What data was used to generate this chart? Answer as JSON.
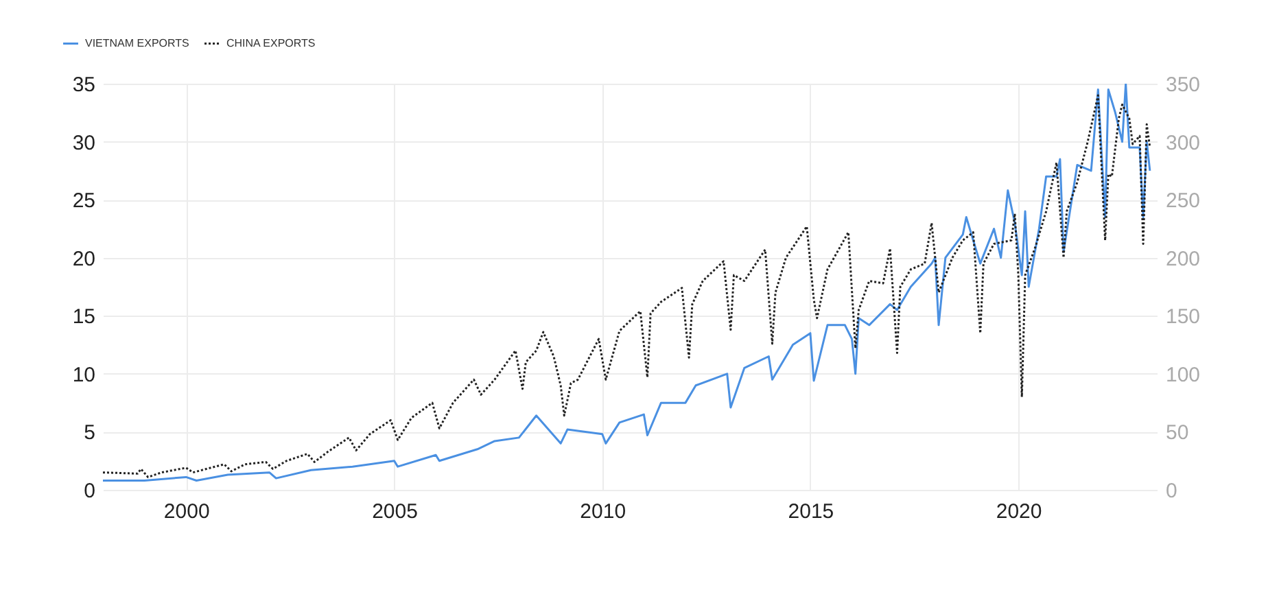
{
  "chart_data": {
    "type": "line",
    "xlim": [
      "1998-01",
      "2023-05"
    ],
    "xticks": [
      "2000",
      "2005",
      "2010",
      "2015",
      "2020"
    ],
    "ylim": [
      0,
      35
    ],
    "yticks": [
      0,
      5,
      10,
      15,
      20,
      25,
      30,
      35
    ],
    "y2lim": [
      0,
      350
    ],
    "y2ticks": [
      0,
      50,
      100,
      150,
      200,
      250,
      300,
      350
    ],
    "grid": true,
    "legend": "top left",
    "series": [
      {
        "name": "VIETNAM EXPORTS",
        "color": "#4a90e2",
        "line_style": "solid",
        "x": [
          "1998-01",
          "1999-01",
          "2000-01",
          "2000-04",
          "2001-01",
          "2002-01",
          "2002-03",
          "2003-01",
          "2004-01",
          "2005-01",
          "2005-02",
          "2006-01",
          "2006-02",
          "2007-01",
          "2007-06",
          "2008-01",
          "2008-06",
          "2009-01",
          "2009-03",
          "2010-01",
          "2010-02",
          "2010-06",
          "2011-01",
          "2011-02",
          "2011-06",
          "2012-01",
          "2012-04",
          "2013-01",
          "2013-02",
          "2013-06",
          "2014-01",
          "2014-02",
          "2014-08",
          "2015-01",
          "2015-02",
          "2015-06",
          "2015-11",
          "2016-01",
          "2016-02",
          "2016-03",
          "2016-06",
          "2016-12",
          "2017-02",
          "2017-06",
          "2017-12",
          "2018-01",
          "2018-02",
          "2018-04",
          "2018-09",
          "2018-10",
          "2019-01",
          "2019-02",
          "2019-06",
          "2019-08",
          "2019-10",
          "2019-12",
          "2020-02",
          "2020-03",
          "2020-04",
          "2020-07",
          "2020-09",
          "2020-12",
          "2021-01",
          "2021-02",
          "2021-06",
          "2021-10",
          "2021-12",
          "2022-02",
          "2022-03",
          "2022-05",
          "2022-07",
          "2022-08",
          "2022-09",
          "2022-12",
          "2023-01",
          "2023-02",
          "2023-03"
        ],
        "values": [
          0.8,
          0.8,
          1.1,
          0.8,
          1.3,
          1.5,
          1.0,
          1.7,
          2.0,
          2.5,
          2.0,
          3.0,
          2.5,
          3.5,
          4.2,
          4.5,
          6.4,
          4.0,
          5.2,
          4.8,
          4.0,
          5.8,
          6.5,
          4.7,
          7.5,
          7.5,
          9.0,
          10.0,
          7.1,
          10.5,
          11.5,
          9.5,
          12.5,
          13.5,
          9.4,
          14.2,
          14.2,
          13.0,
          10.0,
          14.8,
          14.2,
          16.0,
          15.5,
          17.5,
          19.5,
          20.0,
          14.2,
          20.0,
          22.0,
          23.5,
          20.5,
          19.5,
          22.5,
          20.0,
          25.8,
          23.0,
          18.5,
          24.0,
          17.5,
          22.5,
          27.0,
          27.0,
          28.5,
          20.5,
          28.0,
          27.5,
          34.5,
          23.5,
          34.5,
          32.5,
          30.0,
          35.0,
          29.5,
          29.5,
          23.5,
          30.0,
          27.5
        ]
      },
      {
        "name": "CHINA EXPORTS",
        "color": "#222222",
        "line_style": "dotted",
        "axis": "y2",
        "x": [
          "1998-01",
          "1998-11",
          "1998-12",
          "1999-02",
          "1999-06",
          "2000-01",
          "2000-03",
          "2000-12",
          "2001-02",
          "2001-06",
          "2001-12",
          "2002-02",
          "2002-06",
          "2002-12",
          "2003-02",
          "2003-06",
          "2003-12",
          "2004-02",
          "2004-06",
          "2004-12",
          "2005-02",
          "2005-06",
          "2005-12",
          "2006-02",
          "2006-06",
          "2006-12",
          "2007-02",
          "2007-06",
          "2007-12",
          "2008-02",
          "2008-03",
          "2008-06",
          "2008-08",
          "2008-11",
          "2009-01",
          "2009-02",
          "2009-04",
          "2009-06",
          "2009-12",
          "2010-02",
          "2010-06",
          "2010-12",
          "2011-02",
          "2011-03",
          "2011-06",
          "2011-12",
          "2012-02",
          "2012-03",
          "2012-06",
          "2012-12",
          "2013-02",
          "2013-03",
          "2013-06",
          "2013-12",
          "2014-02",
          "2014-03",
          "2014-06",
          "2014-12",
          "2015-02",
          "2015-03",
          "2015-06",
          "2015-12",
          "2016-02",
          "2016-03",
          "2016-06",
          "2016-10",
          "2016-12",
          "2017-02",
          "2017-03",
          "2017-06",
          "2017-10",
          "2017-12",
          "2018-02",
          "2018-06",
          "2018-09",
          "2018-12",
          "2019-02",
          "2019-03",
          "2019-06",
          "2019-11",
          "2019-12",
          "2020-01",
          "2020-02",
          "2020-03",
          "2020-06",
          "2020-09",
          "2020-12",
          "2021-02",
          "2021-03",
          "2021-06",
          "2021-09",
          "2021-12",
          "2022-02",
          "2022-03",
          "2022-04",
          "2022-06",
          "2022-07",
          "2022-09",
          "2022-10",
          "2022-12",
          "2023-01",
          "2023-02",
          "2023-03"
        ],
        "values": [
          15,
          14,
          18,
          11,
          15,
          19,
          15,
          22,
          16,
          22,
          24,
          18,
          25,
          31,
          24,
          33,
          45,
          34,
          48,
          60,
          43,
          62,
          75,
          53,
          75,
          95,
          82,
          95,
          120,
          87,
          110,
          120,
          136,
          115,
          90,
          64,
          92,
          95,
          130,
          95,
          137,
          154,
          97,
          152,
          162,
          174,
          114,
          160,
          180,
          197,
          138,
          185,
          180,
          207,
          126,
          170,
          200,
          227,
          164,
          148,
          190,
          222,
          122,
          155,
          180,
          178,
          208,
          118,
          175,
          190,
          195,
          230,
          170,
          200,
          215,
          222,
          135,
          195,
          212,
          215,
          238,
          185,
          80,
          185,
          210,
          240,
          282,
          200,
          240,
          265,
          300,
          340,
          215,
          272,
          270,
          320,
          332,
          320,
          298,
          305,
          212,
          315,
          295
        ]
      }
    ]
  }
}
